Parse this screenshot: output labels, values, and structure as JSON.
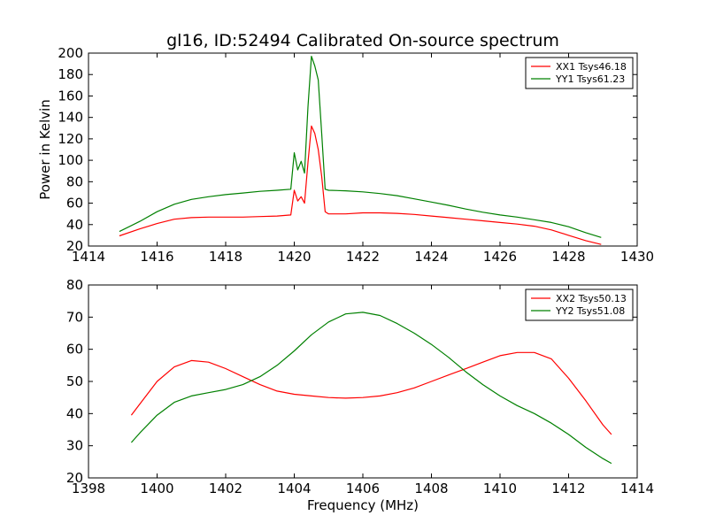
{
  "chart_data": [
    {
      "type": "line",
      "title": "gl16, ID:52494 Calibrated On-source spectrum",
      "xlabel": "",
      "ylabel": "Power in Kelvin",
      "xlim": [
        1414,
        1430
      ],
      "ylim": [
        20,
        200
      ],
      "xticks": [
        "1414",
        "1416",
        "1418",
        "1420",
        "1422",
        "1424",
        "1426",
        "1428",
        "1430"
      ],
      "yticks": [
        "20",
        "40",
        "60",
        "80",
        "100",
        "120",
        "140",
        "160",
        "180",
        "200"
      ],
      "legend": "top-right",
      "grid": false,
      "series": [
        {
          "name": "XX1 Tsys46.18",
          "color": "#ff0000",
          "x": [
            1414.9,
            1415.5,
            1416,
            1416.5,
            1417,
            1417.5,
            1418,
            1418.5,
            1419,
            1419.5,
            1419.9,
            1420.0,
            1420.1,
            1420.2,
            1420.3,
            1420.4,
            1420.5,
            1420.6,
            1420.7,
            1420.8,
            1420.9,
            1421,
            1421.5,
            1422,
            1422.5,
            1423,
            1423.5,
            1424,
            1424.5,
            1425,
            1425.5,
            1426,
            1426.5,
            1427,
            1427.5,
            1428,
            1428.5,
            1428.95
          ],
          "y": [
            29.5,
            36,
            41,
            45,
            46.5,
            47,
            47,
            47,
            47.5,
            48,
            49,
            72,
            62,
            66,
            60,
            98,
            132,
            125,
            110,
            85,
            52,
            50,
            50,
            51,
            51,
            50.5,
            49.5,
            48,
            46.5,
            45,
            43.5,
            42,
            40.5,
            38.5,
            35,
            30,
            25,
            21.5
          ]
        },
        {
          "name": "YY1 Tsys61.23",
          "color": "#008000",
          "x": [
            1414.9,
            1415.5,
            1416,
            1416.5,
            1417,
            1417.5,
            1418,
            1418.5,
            1419,
            1419.5,
            1419.9,
            1420.0,
            1420.1,
            1420.2,
            1420.3,
            1420.4,
            1420.5,
            1420.6,
            1420.7,
            1420.8,
            1420.9,
            1421,
            1421.5,
            1422,
            1422.5,
            1423,
            1423.5,
            1424,
            1424.5,
            1425,
            1425.5,
            1426,
            1426.5,
            1427,
            1427.5,
            1428,
            1428.5,
            1428.95
          ],
          "y": [
            33.5,
            43,
            52,
            59,
            63.5,
            66,
            68,
            69.5,
            71,
            72,
            73,
            107,
            91,
            99,
            88,
            150,
            197,
            188,
            175,
            125,
            73,
            72,
            71.5,
            70.5,
            69,
            67,
            64,
            61,
            58,
            54.5,
            51.5,
            49,
            47,
            44.5,
            42,
            38,
            32.5,
            28
          ]
        }
      ]
    },
    {
      "type": "line",
      "title": "",
      "xlabel": "Frequency (MHz)",
      "ylabel": "",
      "xlim": [
        1398,
        1414
      ],
      "ylim": [
        20,
        80
      ],
      "xticks": [
        "1398",
        "1400",
        "1402",
        "1404",
        "1406",
        "1408",
        "1410",
        "1412",
        "1414"
      ],
      "yticks": [
        "20",
        "30",
        "40",
        "50",
        "60",
        "70",
        "80"
      ],
      "legend": "top-right",
      "grid": false,
      "series": [
        {
          "name": "XX2 Tsys50.13",
          "color": "#ff0000",
          "x": [
            1399.25,
            1399.5,
            1400,
            1400.5,
            1401,
            1401.5,
            1402,
            1402.5,
            1403,
            1403.5,
            1404,
            1404.5,
            1405,
            1405.5,
            1406,
            1406.5,
            1407,
            1407.5,
            1408,
            1408.5,
            1409,
            1409.5,
            1410,
            1410.5,
            1411,
            1411.5,
            1412,
            1412.5,
            1413,
            1413.25
          ],
          "y": [
            39.5,
            43,
            50,
            54.5,
            56.5,
            56,
            54,
            51.5,
            49,
            47,
            46,
            45.5,
            45,
            44.8,
            45,
            45.5,
            46.5,
            48,
            50,
            52,
            54,
            56,
            58,
            59,
            59,
            57,
            51,
            44,
            36.5,
            33.5
          ]
        },
        {
          "name": "YY2 Tsys51.08",
          "color": "#008000",
          "x": [
            1399.25,
            1399.5,
            1400,
            1400.5,
            1401,
            1401.5,
            1402,
            1402.5,
            1403,
            1403.5,
            1404,
            1404.5,
            1405,
            1405.5,
            1406,
            1406.5,
            1407,
            1407.5,
            1408,
            1408.5,
            1409,
            1409.5,
            1410,
            1410.5,
            1411,
            1411.5,
            1412,
            1412.5,
            1413,
            1413.25
          ],
          "y": [
            31,
            34,
            39.5,
            43.5,
            45.5,
            46.5,
            47.5,
            49,
            51.5,
            55,
            59.5,
            64.5,
            68.5,
            71,
            71.5,
            70.5,
            68,
            65,
            61.5,
            57.5,
            53,
            49,
            45.5,
            42.5,
            40,
            37,
            33.5,
            29.5,
            26,
            24.5
          ]
        }
      ]
    }
  ]
}
